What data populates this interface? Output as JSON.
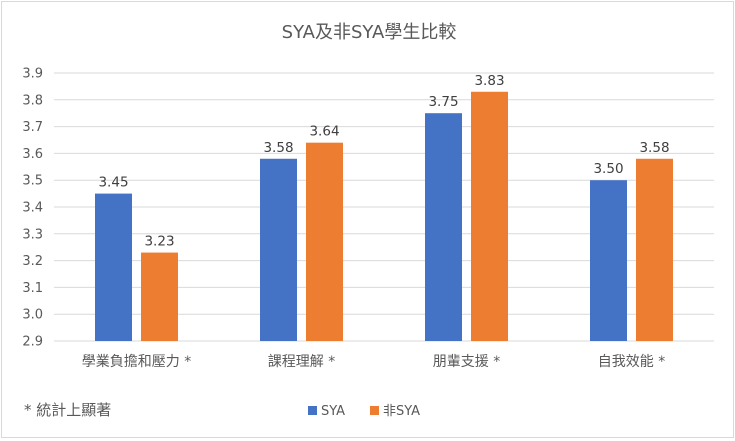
{
  "chart_data": {
    "type": "bar",
    "title": "SYA及非SYA學生比較",
    "categories": [
      "學業負擔和壓力 *",
      "課程理解 *",
      "朋輩支援 *",
      "自我效能 *"
    ],
    "series": [
      {
        "name": "SYA",
        "values": [
          3.45,
          3.58,
          3.75,
          3.5
        ],
        "labels": [
          "3.45",
          "3.58",
          "3.75",
          "3.50"
        ],
        "color": "#4472c4"
      },
      {
        "name": "非SYA",
        "values": [
          3.23,
          3.64,
          3.83,
          3.58
        ],
        "labels": [
          "3.23",
          "3.64",
          "3.83",
          "3.58"
        ],
        "color": "#ed7d31"
      }
    ],
    "ylim": [
      2.9,
      3.9
    ],
    "yticks": [
      "2.9",
      "3.0",
      "3.1",
      "3.2",
      "3.3",
      "3.4",
      "3.5",
      "3.6",
      "3.7",
      "3.8",
      "3.9"
    ],
    "grid": true,
    "legend_position": "bottom",
    "footnote": "* 統計上顯著"
  }
}
